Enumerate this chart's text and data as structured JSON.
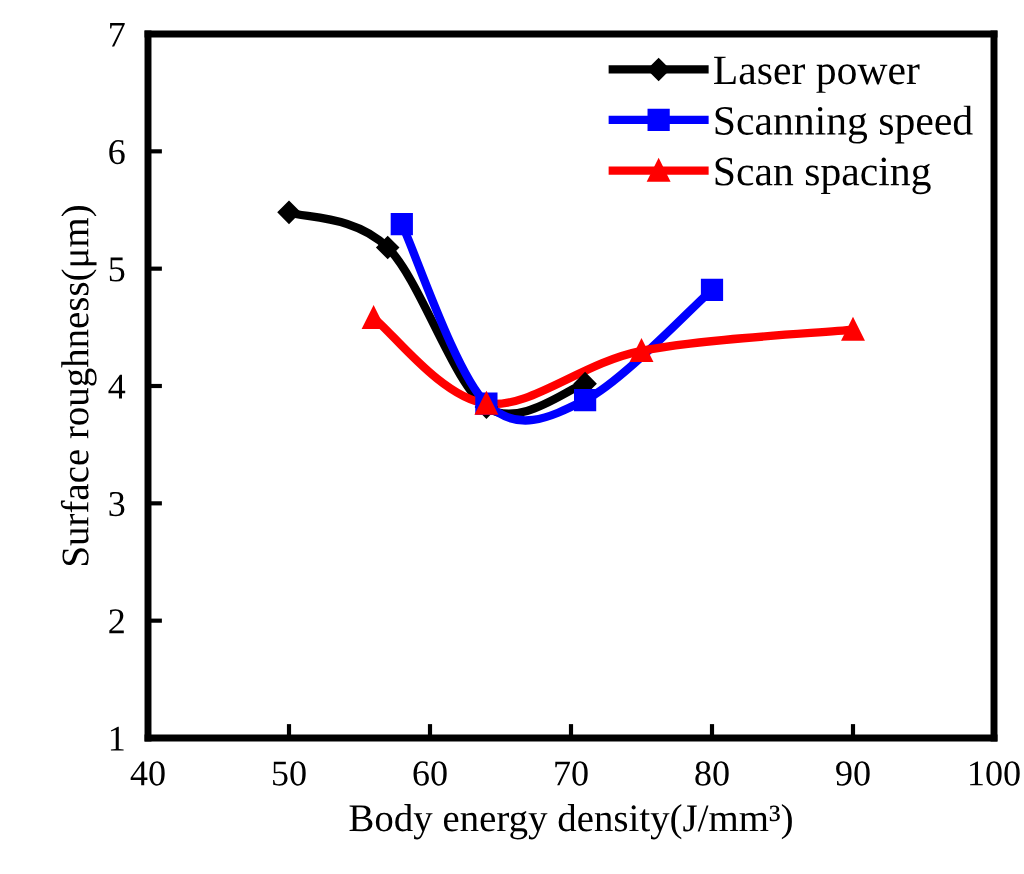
{
  "chart_data": {
    "type": "line",
    "xlabel": "Body energy density(J/mm³)",
    "ylabel": "Surface roughness(μm)",
    "xlim": [
      40,
      100
    ],
    "xticks": [
      40,
      50,
      60,
      70,
      80,
      90,
      100
    ],
    "ylim": [
      1,
      7
    ],
    "yticks": [
      1,
      2,
      3,
      4,
      5,
      6,
      7
    ],
    "grid": false,
    "legend": "top right",
    "series": [
      {
        "name": "Laser power",
        "color": "#000000",
        "marker": "diamond",
        "x": [
          50,
          57,
          64,
          71
        ],
        "values": [
          5.48,
          5.18,
          3.82,
          4.02
        ]
      },
      {
        "name": "Scanning speed",
        "color": "#0000ff",
        "marker": "square",
        "x": [
          58,
          64,
          71,
          80
        ],
        "values": [
          5.38,
          3.85,
          3.88,
          4.82
        ]
      },
      {
        "name": "Scan spacing",
        "color": "#ff0000",
        "marker": "triangle",
        "x": [
          56,
          64,
          75,
          90
        ],
        "values": [
          4.58,
          3.85,
          4.3,
          4.48
        ]
      }
    ]
  }
}
